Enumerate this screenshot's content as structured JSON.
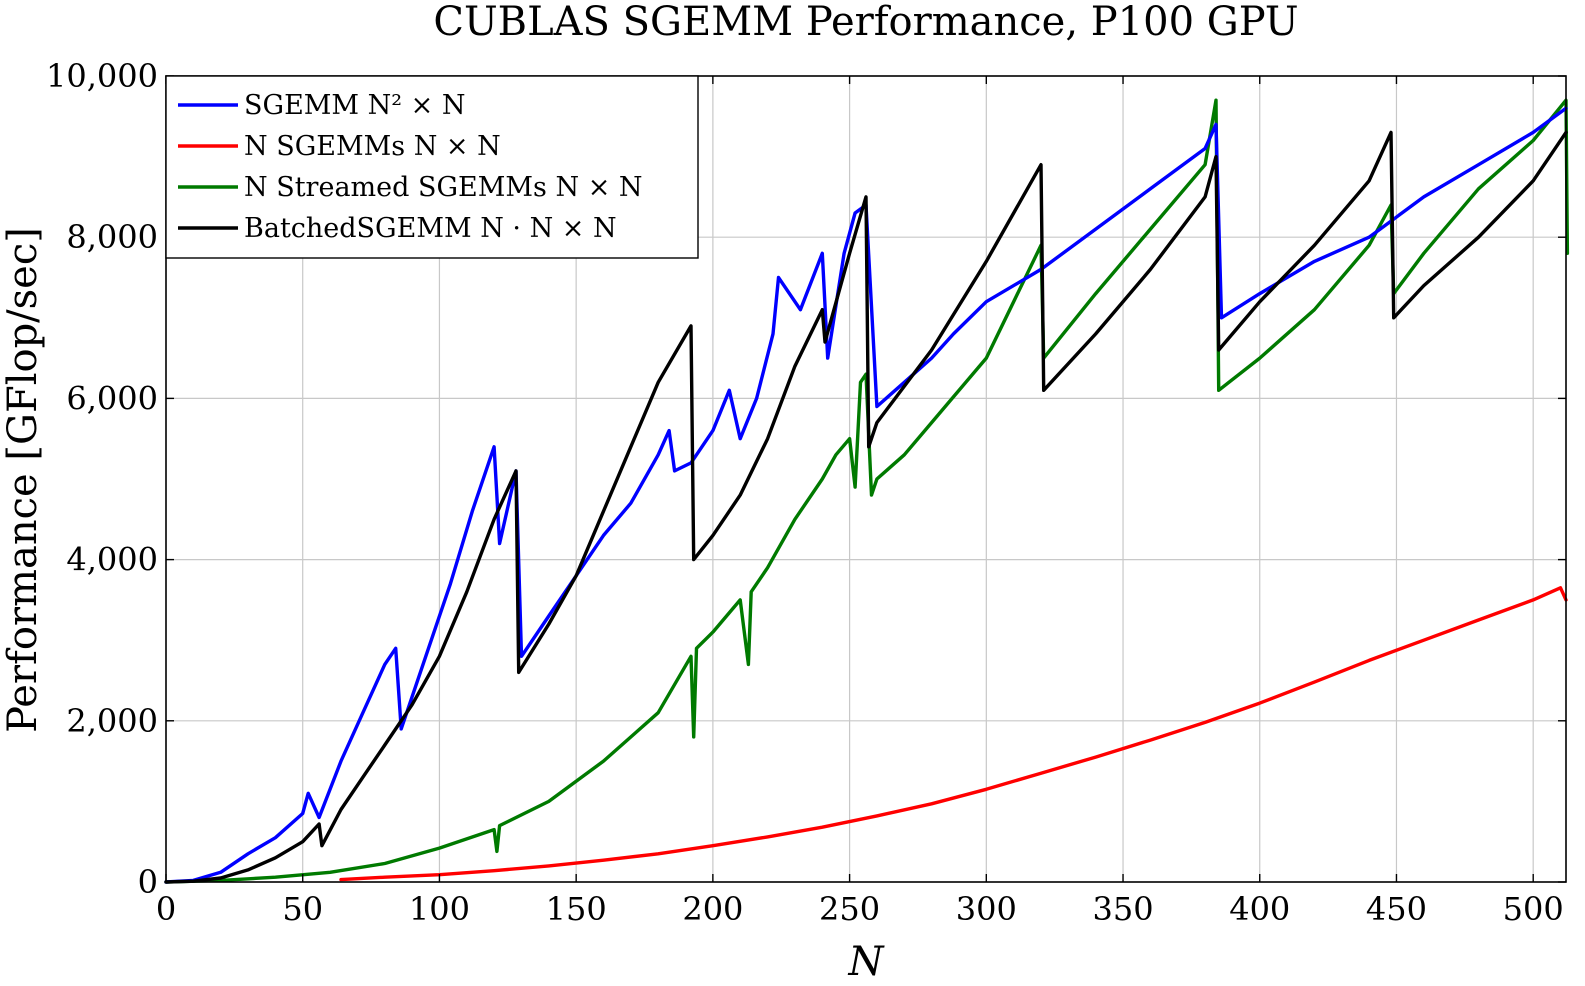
{
  "chart_data": {
    "type": "line",
    "title": "CUBLAS SGEMM Performance, P100 GPU",
    "xlabel": "N",
    "ylabel": "Performance [GFlop/sec]",
    "xlim": [
      0,
      512
    ],
    "ylim": [
      0,
      10000
    ],
    "x_ticks": [
      0,
      50,
      100,
      150,
      200,
      250,
      300,
      350,
      400,
      450,
      500
    ],
    "x_tick_labels": [
      "0",
      "50",
      "100",
      "150",
      "200",
      "250",
      "300",
      "350",
      "400",
      "450",
      "500"
    ],
    "y_ticks": [
      0,
      2000,
      4000,
      6000,
      8000,
      10000
    ],
    "y_tick_labels": [
      "0",
      "2,000",
      "4,000",
      "6,000",
      "8,000",
      "10,000"
    ],
    "grid": true,
    "legend_position": "top-left",
    "series": [
      {
        "name": "SGEMM N² × N",
        "color": "#0000ff",
        "x": [
          0,
          10,
          20,
          30,
          40,
          50,
          52,
          56,
          64,
          72,
          80,
          84,
          86,
          96,
          104,
          112,
          120,
          122,
          128,
          130,
          140,
          150,
          160,
          170,
          180,
          184,
          186,
          192,
          200,
          206,
          210,
          216,
          222,
          224,
          232,
          240,
          242,
          248,
          252,
          256,
          260,
          270,
          280,
          288,
          300,
          320,
          340,
          360,
          380,
          384,
          386,
          400,
          420,
          440,
          448,
          460,
          480,
          500,
          512
        ],
        "y": [
          0,
          20,
          120,
          350,
          550,
          850,
          1100,
          800,
          1500,
          2100,
          2700,
          2900,
          1900,
          2900,
          3700,
          4600,
          5400,
          4200,
          5100,
          2800,
          3300,
          3800,
          4300,
          4700,
          5300,
          5600,
          5100,
          5200,
          5600,
          6100,
          5500,
          6000,
          6800,
          7500,
          7100,
          7800,
          6500,
          7800,
          8300,
          8400,
          5900,
          6200,
          6500,
          6800,
          7200,
          7600,
          8100,
          8600,
          9100,
          9400,
          7000,
          7300,
          7700,
          8000,
          8200,
          8500,
          8900,
          9300,
          9600
        ]
      },
      {
        "name": "N SGEMMs N × N",
        "color": "#ff0000",
        "x": [
          64,
          80,
          100,
          120,
          140,
          160,
          180,
          200,
          220,
          240,
          260,
          280,
          300,
          320,
          340,
          360,
          380,
          400,
          420,
          440,
          460,
          480,
          500,
          510,
          512
        ],
        "y": [
          30,
          60,
          90,
          140,
          200,
          270,
          350,
          450,
          560,
          680,
          820,
          970,
          1150,
          1350,
          1550,
          1760,
          1980,
          2220,
          2480,
          2750,
          3000,
          3250,
          3500,
          3650,
          3500
        ]
      },
      {
        "name": "N Streamed SGEMMs N × N",
        "color": "#007a00",
        "x": [
          0,
          20,
          40,
          60,
          80,
          100,
          120,
          121,
          122,
          140,
          160,
          180,
          192,
          193,
          194,
          200,
          210,
          213,
          214,
          220,
          230,
          240,
          245,
          250,
          252,
          254,
          256,
          258,
          260,
          270,
          280,
          300,
          320,
          321,
          340,
          360,
          380,
          384,
          385,
          400,
          420,
          440,
          448,
          449,
          460,
          480,
          500,
          512,
          512.5
        ],
        "y": [
          0,
          20,
          60,
          120,
          230,
          420,
          650,
          380,
          700,
          1000,
          1500,
          2100,
          2800,
          1800,
          2900,
          3100,
          3500,
          2700,
          3600,
          3900,
          4500,
          5000,
          5300,
          5500,
          4900,
          6200,
          6300,
          4800,
          5000,
          5300,
          5700,
          6500,
          7900,
          6500,
          7300,
          8100,
          8900,
          9700,
          6100,
          6500,
          7100,
          7900,
          8400,
          7300,
          7800,
          8600,
          9200,
          9700,
          7800
        ]
      },
      {
        "name": "BatchedSGEMM N · N × N",
        "color": "#000000",
        "x": [
          0,
          10,
          20,
          30,
          40,
          50,
          56,
          57,
          64,
          72,
          80,
          90,
          100,
          110,
          120,
          128,
          129,
          140,
          150,
          160,
          170,
          180,
          192,
          193,
          200,
          210,
          220,
          230,
          240,
          241,
          250,
          256,
          257,
          260,
          280,
          300,
          320,
          321,
          340,
          360,
          380,
          384,
          385,
          400,
          420,
          440,
          448,
          449,
          460,
          480,
          500,
          512
        ],
        "y": [
          0,
          10,
          50,
          150,
          300,
          500,
          720,
          450,
          900,
          1300,
          1700,
          2200,
          2800,
          3600,
          4500,
          5100,
          2600,
          3200,
          3800,
          4600,
          5400,
          6200,
          6900,
          4000,
          4300,
          4800,
          5500,
          6400,
          7100,
          6700,
          7800,
          8500,
          5400,
          5700,
          6600,
          7700,
          8900,
          6100,
          6800,
          7600,
          8500,
          9000,
          6600,
          7200,
          7900,
          8700,
          9300,
          7000,
          7400,
          8000,
          8700,
          9300
        ]
      }
    ]
  }
}
